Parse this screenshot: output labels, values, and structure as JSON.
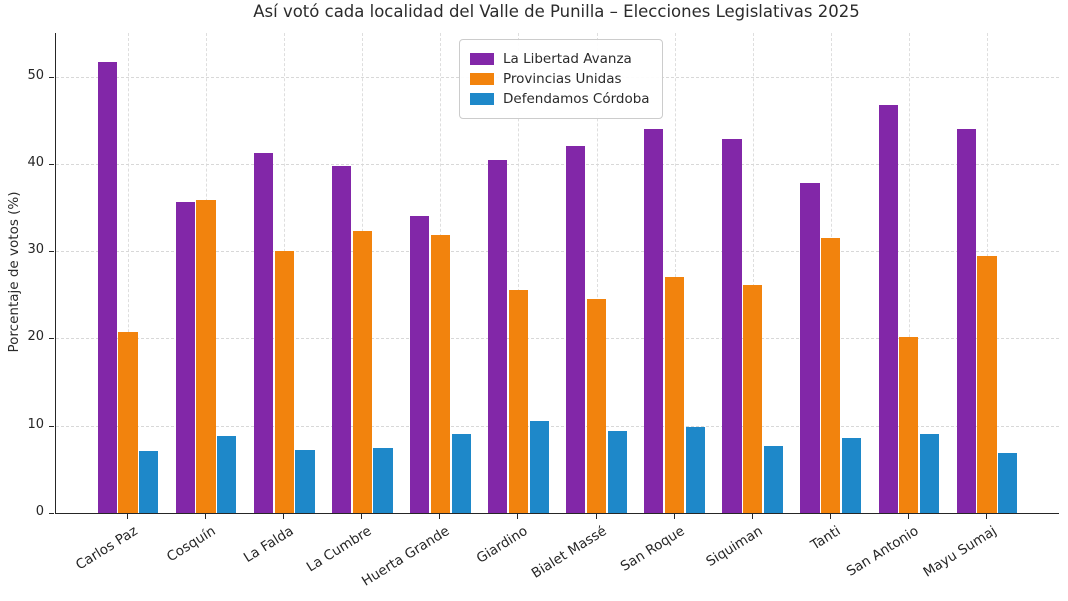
{
  "title": "Así votó cada localidad del Valle de Punilla – Elecciones Legislativas 2025",
  "chart_data": {
    "type": "bar",
    "title": "Así votó cada localidad del Valle de Punilla – Elecciones Legislativas 2025",
    "xlabel": "",
    "ylabel": "Porcentaje de votos (%)",
    "categories": [
      "Carlos Paz",
      "Cosquín",
      "La Falda",
      "La Cumbre",
      "Huerta Grande",
      "Giardino",
      "Bialet Massé",
      "San Roque",
      "Siquiman",
      "Tanti",
      "San Antonio",
      "Mayu Sumaj"
    ],
    "series": [
      {
        "name": "La Libertad Avanza",
        "color": "#8227A8",
        "values": [
          51.7,
          35.6,
          41.2,
          39.8,
          34.0,
          40.4,
          42.1,
          44.0,
          42.8,
          37.8,
          46.8,
          44.0
        ]
      },
      {
        "name": "Provincias Unidas",
        "color": "#F2830D",
        "values": [
          20.7,
          35.9,
          30.0,
          32.3,
          31.8,
          25.5,
          24.5,
          27.0,
          26.1,
          31.5,
          20.2,
          29.5
        ]
      },
      {
        "name": "Defendamos Córdoba",
        "color": "#1E88C9",
        "values": [
          7.1,
          8.8,
          7.2,
          7.4,
          9.1,
          10.6,
          9.4,
          9.9,
          7.7,
          8.6,
          9.0,
          6.9
        ]
      }
    ],
    "yticks": [
      0,
      10,
      20,
      30,
      40,
      50
    ],
    "ylim": [
      0,
      55
    ],
    "grid": "dashed, horizontal and vertical",
    "legend_position": "top-center"
  }
}
